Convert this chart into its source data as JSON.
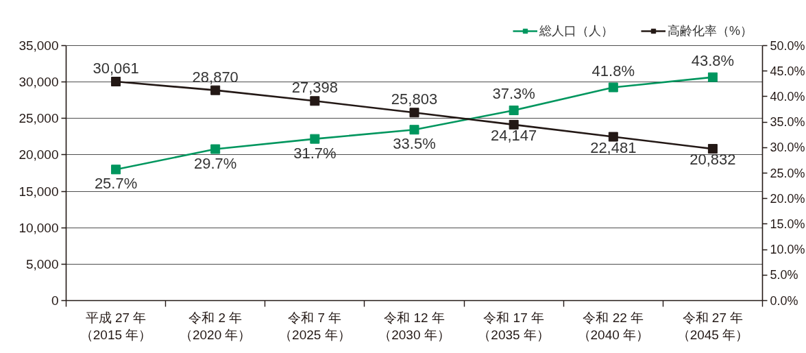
{
  "chart_data": {
    "type": "line",
    "categories": [
      "平成 27 年（2015 年）",
      "令和 2 年（2020 年）",
      "令和 7 年（2025 年）",
      "令和 12 年（2030 年）",
      "令和 17 年（2035 年）",
      "令和 22 年（2040 年）",
      "令和 27 年（2045 年）"
    ],
    "series": [
      {
        "name": "総人口（人）",
        "color": "#00965e",
        "axis": "y2",
        "values": [
          25.7,
          29.7,
          31.7,
          33.5,
          37.3,
          41.8,
          43.8
        ],
        "value_labels": [
          "25.7%",
          "29.7%",
          "31.7%",
          "33.5%",
          "37.3%",
          "41.8%",
          "43.8%"
        ]
      },
      {
        "name": "高齢化率（%）",
        "color": "#231815",
        "values": [
          30061,
          28870,
          27398,
          25803,
          24147,
          22481,
          20832
        ],
        "value_labels": [
          "30,061",
          "28,870",
          "27,398",
          "25,803",
          "24,147",
          "22,481",
          "20,832"
        ]
      }
    ],
    "ylim": [
      0,
      35000
    ],
    "yticks": [
      0,
      {
        "value": 5000,
        "label": "5,000"
      },
      {
        "value": 10000,
        "label": "10,000"
      },
      {
        "value": 15000,
        "label": "15,000"
      },
      {
        "value": 20000,
        "label": "20,000"
      },
      {
        "value": 25000,
        "label": "25,000"
      },
      {
        "value": 30000,
        "label": "30,000"
      },
      {
        "value": 35000,
        "label": "35,000"
      }
    ],
    "y2lim": [
      0,
      50
    ],
    "y2ticks": [
      {
        "value": 0,
        "label": "0.0%"
      },
      {
        "value": 5,
        "label": "5.0%"
      },
      {
        "value": 10,
        "label": "10.0%"
      },
      {
        "value": 15,
        "label": "15.0%"
      },
      {
        "value": 20,
        "label": "20.0%"
      },
      {
        "value": 25,
        "label": "25.0%"
      },
      {
        "value": 30,
        "label": "30.0%"
      },
      {
        "value": 35,
        "label": "35.0%"
      },
      {
        "value": 40,
        "label": "40.0%"
      },
      {
        "value": 45,
        "label": "45.0%"
      },
      {
        "value": 50,
        "label": "50.0%"
      }
    ],
    "grid": "y",
    "legend": "top right",
    "marker": "square",
    "line_style": "solid"
  }
}
